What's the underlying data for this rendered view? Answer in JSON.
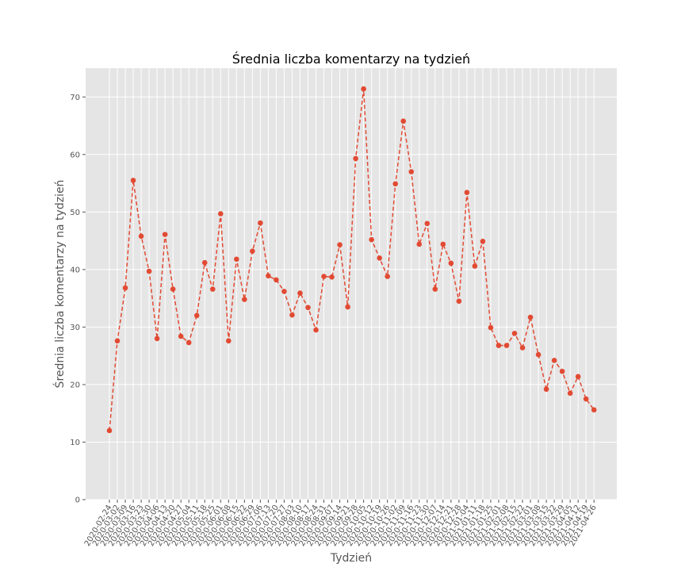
{
  "chart_data": {
    "type": "line",
    "title": "Średnia liczba komentarzy na tydzień",
    "xlabel": "Tydzień",
    "ylabel": "Średnia liczba komentarzy na tydzień",
    "ylim": [
      0,
      75
    ],
    "yticks": [
      0,
      10,
      20,
      30,
      40,
      50,
      60,
      70
    ],
    "grid": true,
    "line_style": "dashed",
    "marker": "circle",
    "colors": {
      "line": "#E24A33",
      "background": "#E5E5E5",
      "grid": "#FFFFFF"
    },
    "x": [
      "2020-02-24",
      "2020-03-02",
      "2020-03-09",
      "2020-03-16",
      "2020-03-23",
      "2020-03-30",
      "2020-04-06",
      "2020-04-13",
      "2020-04-20",
      "2020-04-27",
      "2020-05-04",
      "2020-05-11",
      "2020-05-18",
      "2020-05-25",
      "2020-06-01",
      "2020-06-08",
      "2020-06-15",
      "2020-06-22",
      "2020-06-29",
      "2020-07-06",
      "2020-07-13",
      "2020-07-20",
      "2020-07-27",
      "2020-08-03",
      "2020-08-10",
      "2020-08-17",
      "2020-08-24",
      "2020-08-31",
      "2020-09-07",
      "2020-09-14",
      "2020-09-21",
      "2020-09-28",
      "2020-10-05",
      "2020-10-12",
      "2020-10-19",
      "2020-10-26",
      "2020-11-02",
      "2020-11-09",
      "2020-11-16",
      "2020-11-23",
      "2020-11-30",
      "2020-12-07",
      "2020-12-14",
      "2020-12-21",
      "2020-12-28",
      "2021-01-04",
      "2021-01-11",
      "2021-01-18",
      "2021-01-25",
      "2021-02-01",
      "2021-02-08",
      "2021-02-15",
      "2021-02-22",
      "2021-03-01",
      "2021-03-08",
      "2021-03-15",
      "2021-03-22",
      "2021-03-29",
      "2021-04-05",
      "2021-04-12",
      "2021-04-19",
      "2021-04-26"
    ],
    "series": [
      {
        "values": [
          12.0,
          27.6,
          36.8,
          55.5,
          45.8,
          39.7,
          28.0,
          46.1,
          36.6,
          28.4,
          27.3,
          32.0,
          41.2,
          36.6,
          49.7,
          27.6,
          41.8,
          34.8,
          43.2,
          48.1,
          38.9,
          38.2,
          36.2,
          32.1,
          35.9,
          33.4,
          29.5,
          38.8,
          38.7,
          44.3,
          33.5,
          59.3,
          71.4,
          45.2,
          42.0,
          38.8,
          54.9,
          65.8,
          57.0,
          44.4,
          48.0,
          36.6,
          44.4,
          41.1,
          34.5,
          53.4,
          40.6,
          44.9,
          29.9,
          26.8,
          26.8,
          28.9,
          26.4,
          31.7,
          25.2,
          19.2,
          24.2,
          22.3,
          18.5,
          21.4,
          17.5,
          15.6
        ]
      }
    ]
  }
}
